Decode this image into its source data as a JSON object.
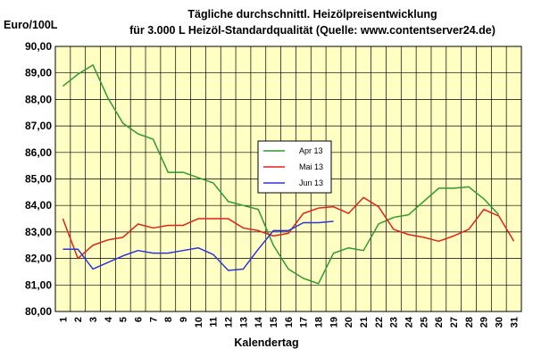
{
  "chart_data": {
    "type": "line",
    "title": "Tägliche durchschnittl. Heizölpreisentwicklung",
    "subtitle": "für 3.000 L Heizöl-Standardqualität (Quelle: www.contentserver24.de)",
    "ylabel": "Euro/100L",
    "xlabel": "Kalendertag",
    "ylim": [
      80,
      90
    ],
    "ytick_labels": [
      "80,00",
      "81,00",
      "82,00",
      "83,00",
      "84,00",
      "85,00",
      "86,00",
      "87,00",
      "88,00",
      "89,00",
      "90,00"
    ],
    "x": [
      1,
      2,
      3,
      4,
      5,
      6,
      7,
      8,
      9,
      10,
      11,
      12,
      13,
      14,
      15,
      16,
      17,
      18,
      19,
      20,
      21,
      22,
      23,
      24,
      25,
      26,
      27,
      28,
      29,
      30,
      31
    ],
    "grid": true,
    "legend_position": "center",
    "series": [
      {
        "name": "Apr 13",
        "color": "#2e9a2e",
        "values": [
          88.5,
          88.95,
          89.3,
          88.05,
          87.1,
          86.7,
          86.5,
          85.25,
          85.25,
          85.05,
          84.85,
          84.15,
          84.0,
          83.85,
          82.5,
          81.6,
          81.25,
          81.05,
          82.2,
          82.4,
          82.3,
          83.3,
          83.55,
          83.65,
          84.15,
          84.65,
          84.65,
          84.7,
          84.25,
          83.65,
          null
        ]
      },
      {
        "name": "Mai 13",
        "color": "#e0231a",
        "values": [
          83.5,
          82.0,
          82.5,
          82.7,
          82.8,
          83.3,
          83.15,
          83.25,
          83.25,
          83.5,
          83.5,
          83.5,
          83.15,
          83.05,
          82.85,
          82.95,
          83.7,
          83.9,
          83.95,
          83.7,
          84.3,
          83.95,
          83.1,
          82.9,
          82.8,
          82.65,
          82.85,
          83.1,
          83.85,
          83.6,
          82.65
        ]
      },
      {
        "name": "Jun 13",
        "color": "#2b35d8",
        "values": [
          82.35,
          82.35,
          81.6,
          81.85,
          82.1,
          82.3,
          82.2,
          82.2,
          82.3,
          82.4,
          82.15,
          81.55,
          81.6,
          82.35,
          83.05,
          83.05,
          83.35,
          83.35,
          83.4,
          null,
          null,
          null,
          null,
          null,
          null,
          null,
          null,
          null,
          null,
          null,
          null
        ]
      }
    ]
  }
}
